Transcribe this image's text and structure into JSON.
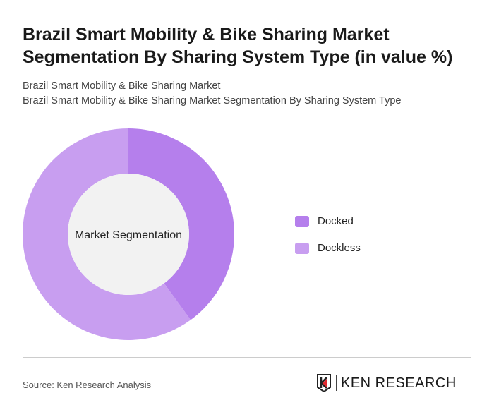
{
  "title": "Brazil Smart Mobility & Bike Sharing Market Segmentation By Sharing System Type (in value %)",
  "subtitle_1": "Brazil Smart Mobility & Bike Sharing Market",
  "subtitle_2": "Brazil Smart Mobility & Bike Sharing Market Segmentation By Sharing System Type",
  "source": "Source: Ken Research Analysis",
  "logo_text": "KEN RESEARCH",
  "chart_data": {
    "type": "pie",
    "variant": "donut",
    "center_label": "Market Segmentation",
    "categories": [
      "Docked",
      "Dockless"
    ],
    "values": [
      40,
      60
    ],
    "colors": [
      "#b57fec",
      "#c89ef0"
    ],
    "legend": "right"
  }
}
